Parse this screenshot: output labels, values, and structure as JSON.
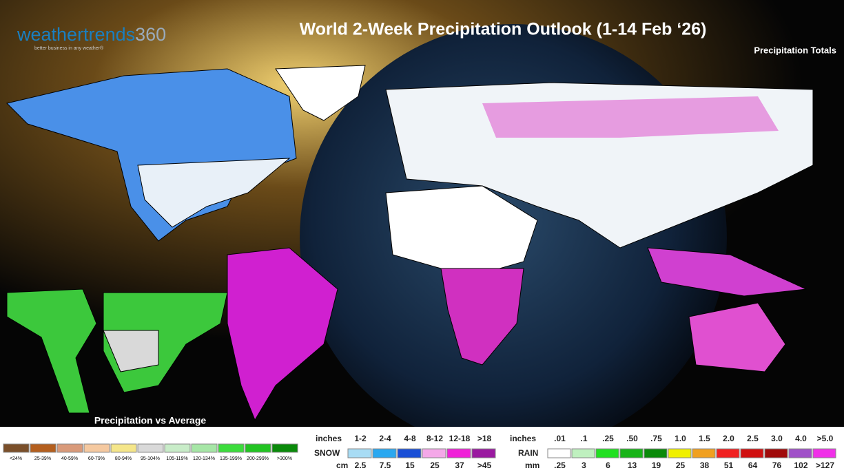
{
  "header": {
    "logo_name": "weathertrends",
    "logo_number": "360",
    "tagline": "better business in any weather®",
    "title": "World 2-Week Precipitation Outlook (1-14 Feb ‘26)",
    "subtitle": "Precipitation Totals"
  },
  "inset": {
    "label": "Precipitation vs Average"
  },
  "anomaly_legend": {
    "items": [
      {
        "label": "<24%",
        "color": "#7a4f2a"
      },
      {
        "label": "25-39%",
        "color": "#b45f1e"
      },
      {
        "label": "40-59%",
        "color": "#d99a7a"
      },
      {
        "label": "60-79%",
        "color": "#f5c9a0"
      },
      {
        "label": "80-94%",
        "color": "#f5e68a"
      },
      {
        "label": "95-104%",
        "color": "#d9d9d9"
      },
      {
        "label": "105-119%",
        "color": "#c8ecc8"
      },
      {
        "label": "120-134%",
        "color": "#a6e6a6"
      },
      {
        "label": "135-199%",
        "color": "#3cdc3c"
      },
      {
        "label": "200-299%",
        "color": "#22c422"
      },
      {
        "label": ">300%",
        "color": "#0a8a0a"
      }
    ]
  },
  "snow_legend": {
    "title": "SNOW",
    "top_unit": "inches",
    "bottom_unit": "cm",
    "items": [
      {
        "inches": "1-2",
        "cm": "2.5",
        "color": "#a8dcf4"
      },
      {
        "inches": "2-4",
        "cm": "7.5",
        "color": "#2aa8f0"
      },
      {
        "inches": "4-8",
        "cm": "15",
        "color": "#1a4fd6"
      },
      {
        "inches": "8-12",
        "cm": "25",
        "color": "#f4a8e8"
      },
      {
        "inches": "12-18",
        "cm": "37",
        "color": "#f020d8"
      },
      {
        "inches": ">18",
        "cm": ">45",
        "color": "#9a1aa0"
      }
    ]
  },
  "rain_legend": {
    "title": "RAIN",
    "top_unit": "inches",
    "bottom_unit": "mm",
    "items": [
      {
        "inches": ".01",
        "mm": ".25",
        "color": "#ffffff"
      },
      {
        "inches": ".1",
        "mm": "3",
        "color": "#bff0bf"
      },
      {
        "inches": ".25",
        "mm": "6",
        "color": "#22e022"
      },
      {
        "inches": ".50",
        "mm": "13",
        "color": "#18b418"
      },
      {
        "inches": ".75",
        "mm": "19",
        "color": "#0a8a0a"
      },
      {
        "inches": "1.0",
        "mm": "25",
        "color": "#f0f000"
      },
      {
        "inches": "1.5",
        "mm": "38",
        "color": "#f0a020"
      },
      {
        "inches": "2.0",
        "mm": "51",
        "color": "#f02020"
      },
      {
        "inches": "2.5",
        "mm": "64",
        "color": "#d01010"
      },
      {
        "inches": "3.0",
        "mm": "76",
        "color": "#a00a0a"
      },
      {
        "inches": "4.0",
        "mm": "102",
        "color": "#a050c8"
      },
      {
        "inches": ">5.0",
        "mm": ">127",
        "color": "#f030e8"
      }
    ]
  }
}
